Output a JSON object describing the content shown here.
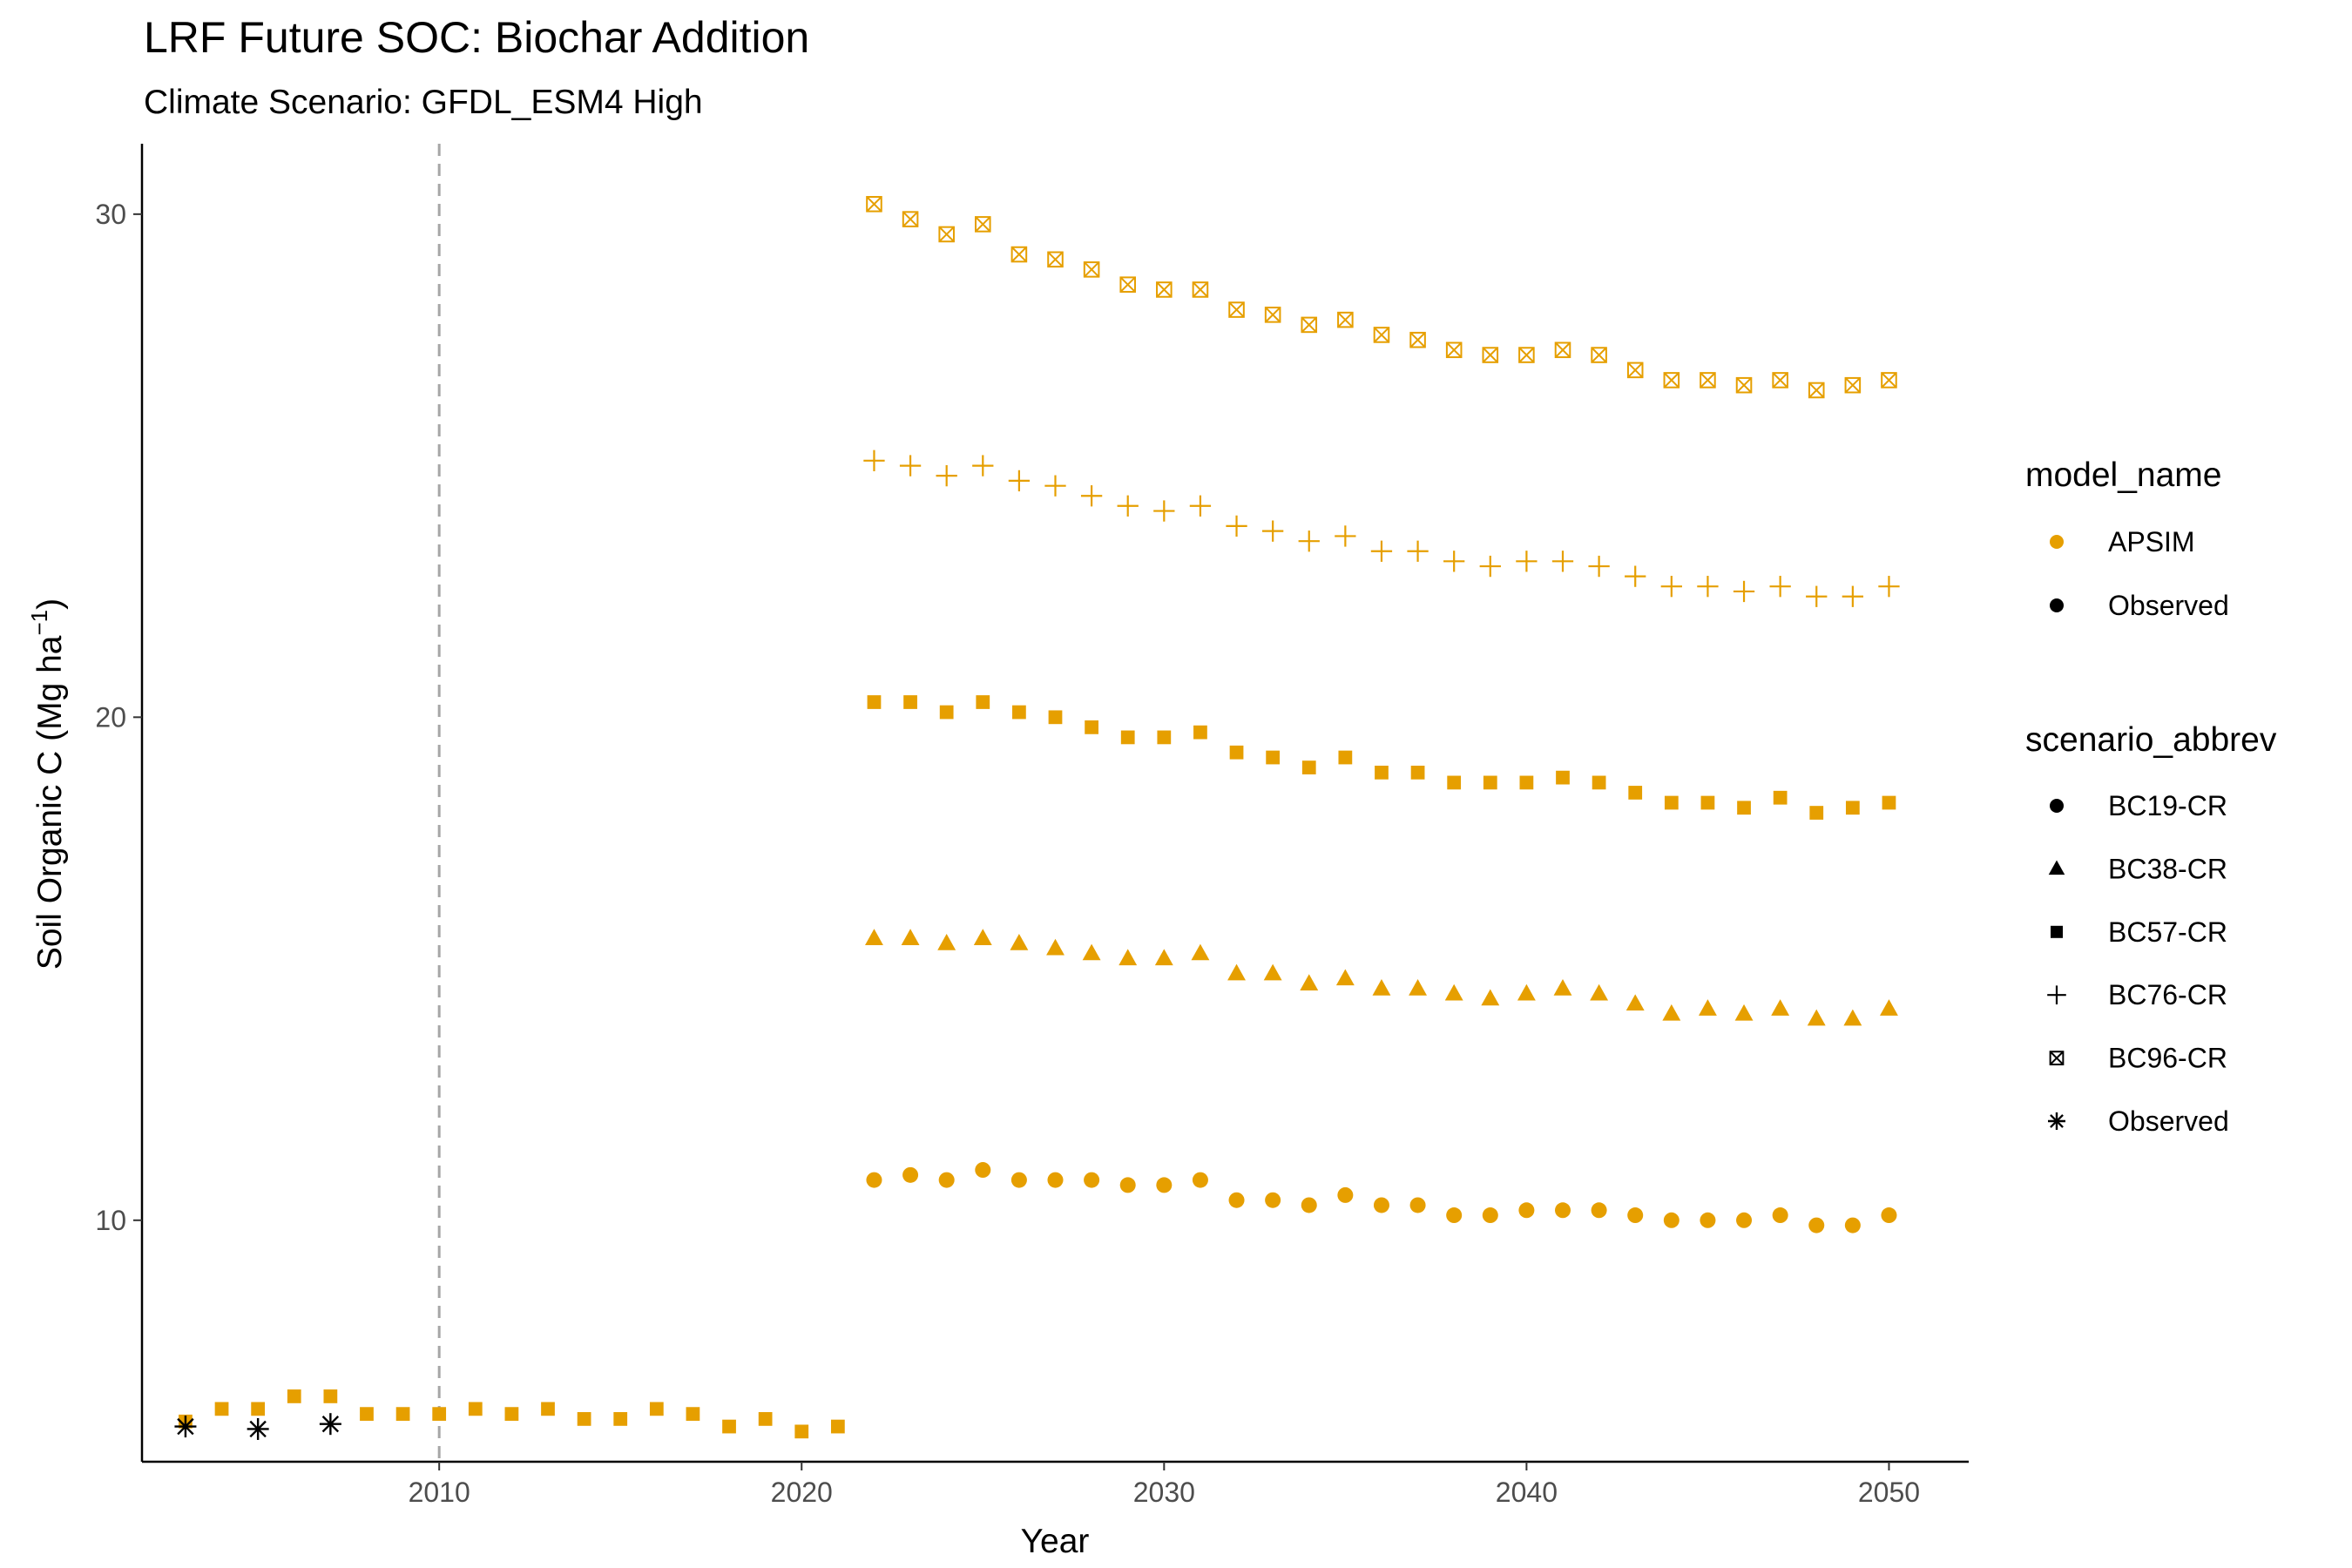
{
  "chart_data": {
    "type": "scatter",
    "title": "LRF  Future SOC: Biochar Addition",
    "subtitle": "Climate Scenario: GFDL_ESM4 High",
    "xlabel": "Year",
    "ylabel": "Soil Organic C (Mg ha",
    "ylabel_superscript": "−1",
    "ylabel_close": ")",
    "xlim": [
      2001.8,
      2052.2
    ],
    "ylim": [
      5.2,
      31.4
    ],
    "x_ticks": [
      2010,
      2020,
      2030,
      2040,
      2050
    ],
    "y_ticks": [
      10,
      20,
      30
    ],
    "vline": 2010,
    "grid": false,
    "colors": {
      "APSIM": "#E69F00",
      "Observed": "#000000",
      "vline": "#a6a6a6"
    },
    "historical": {
      "x": [
        2003,
        2004,
        2005,
        2006,
        2007,
        2008,
        2009,
        2010,
        2011,
        2012,
        2013,
        2014,
        2015,
        2016,
        2017,
        2018,
        2019,
        2020,
        2021
      ],
      "values": [
        6.0,
        6.25,
        6.25,
        6.5,
        6.5,
        6.15,
        6.15,
        6.15,
        6.25,
        6.15,
        6.25,
        6.05,
        6.05,
        6.25,
        6.15,
        5.9,
        6.05,
        5.8,
        5.9
      ]
    },
    "x": [
      2022,
      2023,
      2024,
      2025,
      2026,
      2027,
      2028,
      2029,
      2030,
      2031,
      2032,
      2033,
      2034,
      2035,
      2036,
      2037,
      2038,
      2039,
      2040,
      2041,
      2042,
      2043,
      2044,
      2045,
      2046,
      2047,
      2048,
      2049,
      2050
    ],
    "series": [
      {
        "name": "BC19-CR",
        "shape": "circle",
        "values": [
          10.8,
          10.9,
          10.8,
          11.0,
          10.8,
          10.8,
          10.8,
          10.7,
          10.7,
          10.8,
          10.4,
          10.4,
          10.3,
          10.5,
          10.3,
          10.3,
          10.1,
          10.1,
          10.2,
          10.2,
          10.2,
          10.1,
          10.0,
          10.0,
          10.0,
          10.1,
          9.9,
          9.9,
          10.1
        ]
      },
      {
        "name": "BC38-CR",
        "shape": "triangle",
        "values": [
          15.6,
          15.6,
          15.5,
          15.6,
          15.5,
          15.4,
          15.3,
          15.2,
          15.2,
          15.3,
          14.9,
          14.9,
          14.7,
          14.8,
          14.6,
          14.6,
          14.5,
          14.4,
          14.5,
          14.6,
          14.5,
          14.3,
          14.1,
          14.2,
          14.1,
          14.2,
          14.0,
          14.0,
          14.2
        ]
      },
      {
        "name": "BC57-CR",
        "shape": "square",
        "values": [
          20.3,
          20.3,
          20.1,
          20.3,
          20.1,
          20.0,
          19.8,
          19.6,
          19.6,
          19.7,
          19.3,
          19.2,
          19.0,
          19.2,
          18.9,
          18.9,
          18.7,
          18.7,
          18.7,
          18.8,
          18.7,
          18.5,
          18.3,
          18.3,
          18.2,
          18.4,
          18.1,
          18.2,
          18.3
        ]
      },
      {
        "name": "BC76-CR",
        "shape": "plus",
        "values": [
          25.1,
          25.0,
          24.8,
          25.0,
          24.7,
          24.6,
          24.4,
          24.2,
          24.1,
          24.2,
          23.8,
          23.7,
          23.5,
          23.6,
          23.3,
          23.3,
          23.1,
          23.0,
          23.1,
          23.1,
          23.0,
          22.8,
          22.6,
          22.6,
          22.5,
          22.6,
          22.4,
          22.4,
          22.6
        ]
      },
      {
        "name": "BC96-CR",
        "shape": "boxx",
        "values": [
          30.2,
          29.9,
          29.6,
          29.8,
          29.2,
          29.1,
          28.9,
          28.6,
          28.5,
          28.5,
          28.1,
          28.0,
          27.8,
          27.9,
          27.6,
          27.5,
          27.3,
          27.2,
          27.2,
          27.3,
          27.2,
          26.9,
          26.7,
          26.7,
          26.6,
          26.7,
          26.5,
          26.6,
          26.7
        ]
      }
    ],
    "observed": {
      "name": "Observed",
      "x": [
        2003,
        2005,
        2007
      ],
      "values": [
        5.9,
        5.85,
        5.95
      ]
    },
    "legend": {
      "placement": "right",
      "model_title": "model_name",
      "model_items": [
        "APSIM",
        "Observed"
      ],
      "scenario_title": "scenario_abbrev",
      "scenario_items": [
        "BC19-CR",
        "BC38-CR",
        "BC57-CR",
        "BC76-CR",
        "BC96-CR",
        "Observed"
      ]
    }
  }
}
